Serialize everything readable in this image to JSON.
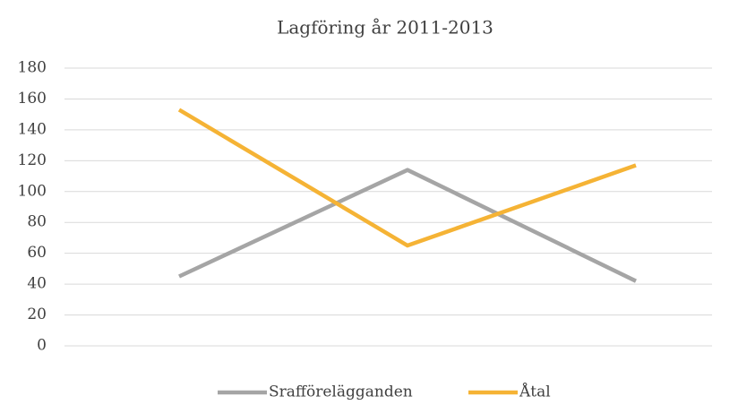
{
  "chart_data": {
    "type": "line",
    "title": "Lagföring år 2011-2013",
    "categories": [
      null,
      null,
      null
    ],
    "series": [
      {
        "name": "Srafförelägganden",
        "color": "#a5a5a5",
        "values": [
          45,
          114,
          42
        ]
      },
      {
        "name": "Åtal",
        "color": "#f5b335",
        "values": [
          153,
          65,
          117
        ]
      }
    ],
    "ylim": [
      0,
      180
    ],
    "yticks": [
      0,
      20,
      40,
      60,
      80,
      100,
      120,
      140,
      160,
      180
    ],
    "grid": true,
    "legend": "bottom"
  }
}
